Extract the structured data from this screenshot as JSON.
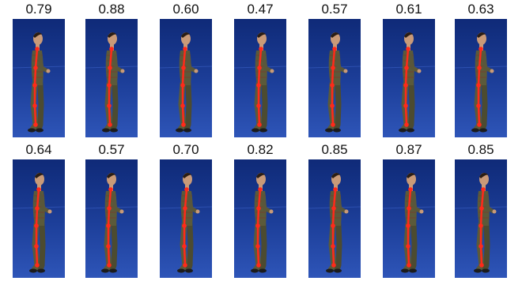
{
  "rows": [
    [
      {
        "score": "0.79"
      },
      {
        "score": "0.88"
      },
      {
        "score": "0.60"
      },
      {
        "score": "0.47"
      },
      {
        "score": "0.57"
      },
      {
        "score": "0.61"
      },
      {
        "score": "0.63"
      }
    ],
    [
      {
        "score": "0.64"
      },
      {
        "score": "0.57"
      },
      {
        "score": "0.70"
      },
      {
        "score": "0.82"
      },
      {
        "score": "0.85"
      },
      {
        "score": "0.87"
      },
      {
        "score": "0.85"
      }
    ]
  ],
  "colors": {
    "background_top": "#0f2a78",
    "background_bottom": "#2e55b8",
    "skeleton": "#ff2a1a",
    "clothing": "#5b5a3a",
    "skin": "#c99a78",
    "hair": "#2a1d14"
  }
}
